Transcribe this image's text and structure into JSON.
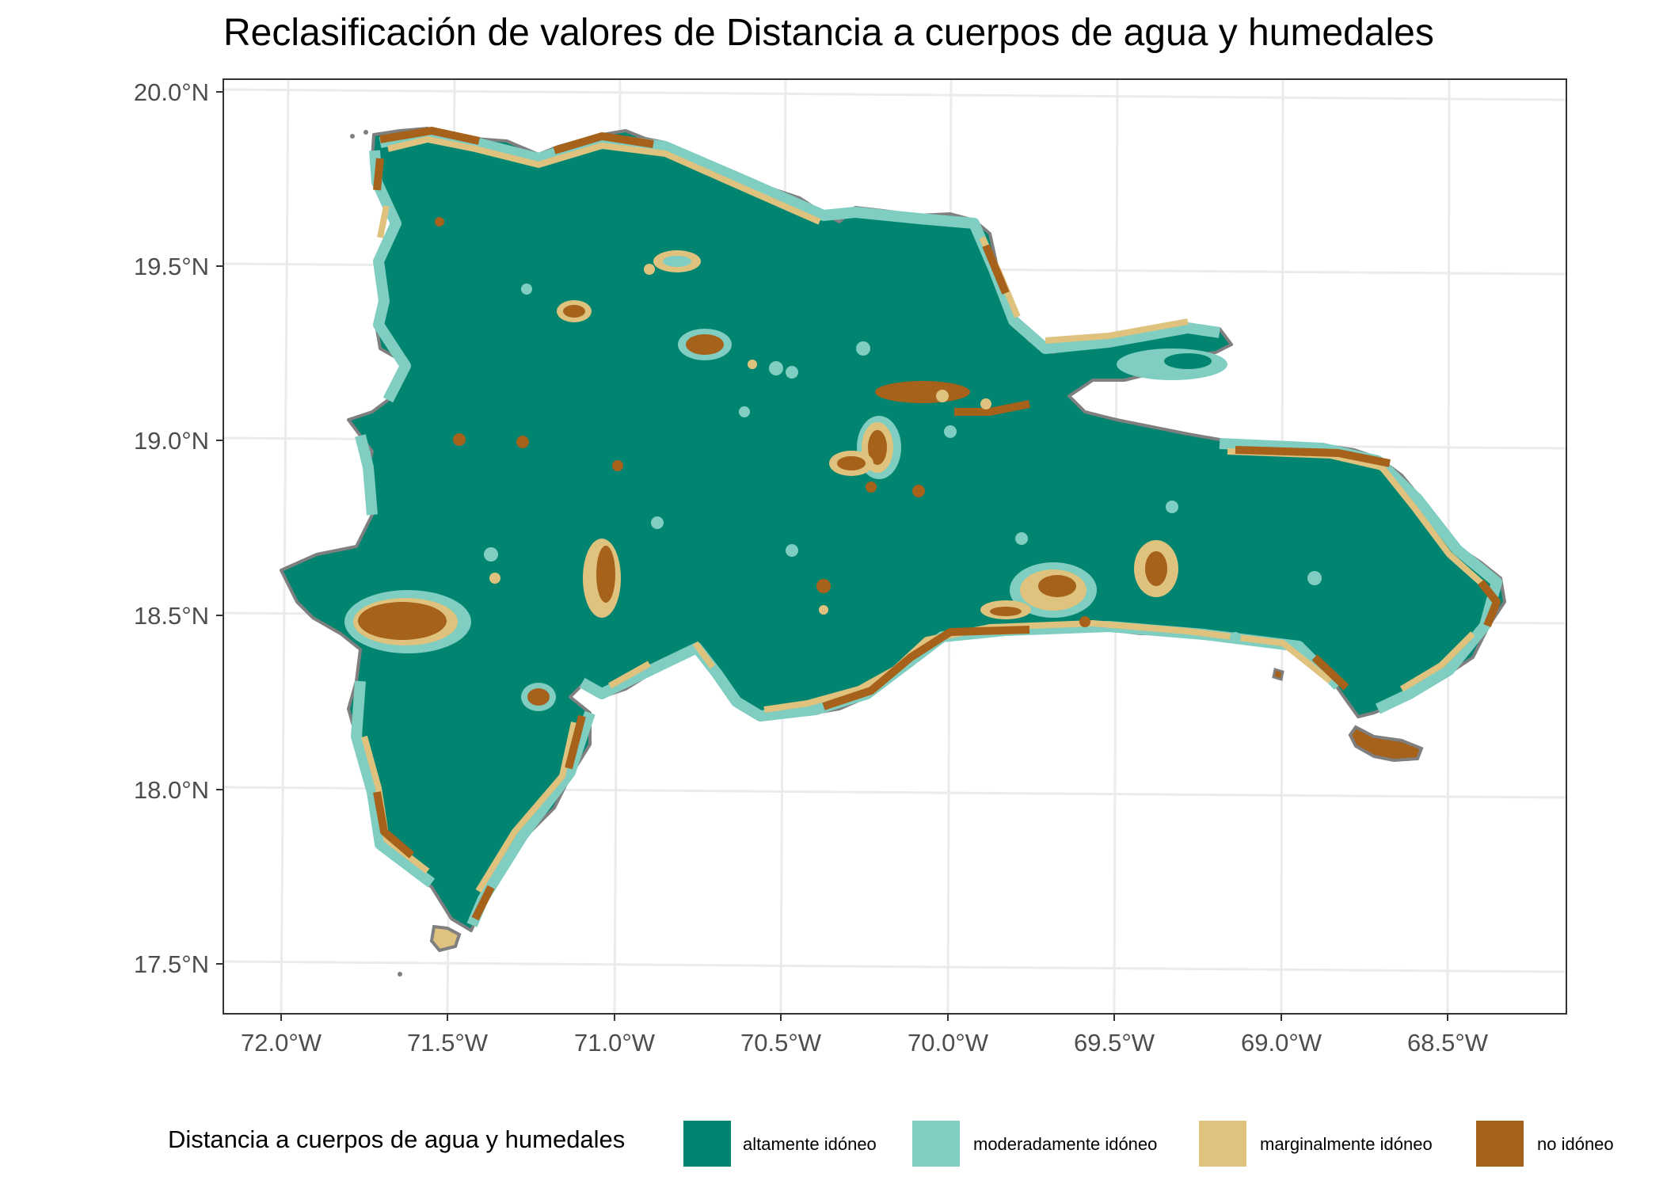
{
  "title": "Reclasificación de valores de Distancia a cuerpos de agua y humedales",
  "y_ticks": [
    "20.0°N",
    "19.5°N",
    "19.0°N",
    "18.5°N",
    "18.0°N",
    "17.5°N"
  ],
  "x_ticks": [
    "72.0°W",
    "71.5°W",
    "71.0°W",
    "70.5°W",
    "70.0°W",
    "69.5°W",
    "69.0°W",
    "68.5°W"
  ],
  "legend": {
    "title": "Distancia a cuerpos de agua y humedales",
    "items": [
      {
        "label": "altamente idóneo",
        "color": "#018571"
      },
      {
        "label": "moderadamente idóneo",
        "color": "#80cdc1"
      },
      {
        "label": "marginalmente idóneo",
        "color": "#dfc27d"
      },
      {
        "label": "no idóneo",
        "color": "#a6611a"
      }
    ]
  },
  "colors": {
    "panel_border": "#333333",
    "grid": "#ebebeb",
    "outline": "#7f7f7f"
  }
}
